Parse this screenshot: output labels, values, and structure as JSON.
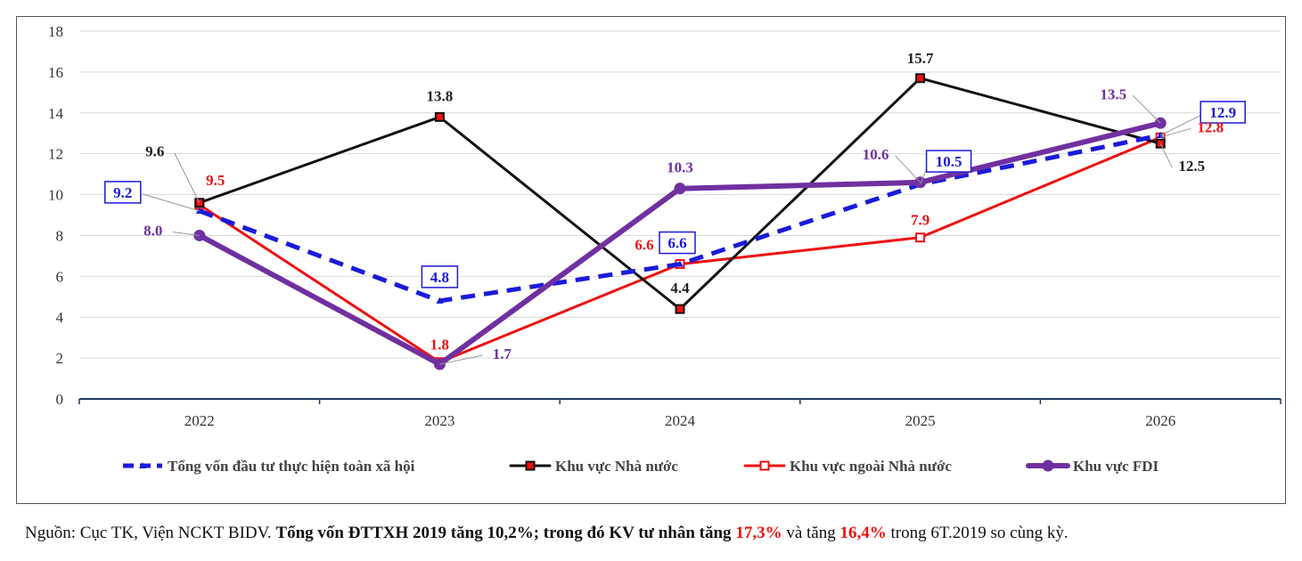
{
  "chart_data": {
    "type": "line",
    "title": "",
    "xlabel": "",
    "ylabel": "",
    "categories": [
      "2022",
      "2023",
      "2024",
      "2025",
      "2026"
    ],
    "ylim": [
      0,
      18
    ],
    "yticks": [
      "0",
      "2",
      "4",
      "6",
      "8",
      "10",
      "12",
      "14",
      "16",
      "18"
    ],
    "grid": "horizontal",
    "legend_position": "bottom",
    "series": [
      {
        "name": "Tổng vốn đầu tư thực hiện toàn xã hội",
        "values": [
          9.2,
          4.8,
          6.6,
          10.5,
          12.9
        ],
        "labels": [
          "9.2",
          "4.8",
          "6.6",
          "10.5",
          "12.9"
        ],
        "color": "#1a1adb",
        "style": "dashed",
        "marker": "triangle",
        "label_boxed": true
      },
      {
        "name": "Khu vực Nhà nước",
        "values": [
          9.6,
          13.8,
          4.4,
          15.7,
          12.5
        ],
        "labels": [
          "9.6",
          "13.8",
          "4.4",
          "15.7",
          "12.5"
        ],
        "color": "#111111",
        "style": "solid",
        "marker": "square",
        "marker_fill": "#ee1111"
      },
      {
        "name": "Khu vực ngoài Nhà nước",
        "values": [
          9.5,
          1.8,
          6.6,
          7.9,
          12.8
        ],
        "labels": [
          "9.5",
          "1.8",
          "6.6",
          "7.9",
          "12.8"
        ],
        "color": "#ee1111",
        "style": "solid",
        "marker": "square",
        "marker_fill": "#ffffff"
      },
      {
        "name": "Khu vực FDI",
        "values": [
          8.0,
          1.7,
          10.3,
          10.6,
          13.5
        ],
        "labels": [
          "8.0",
          "1.7",
          "10.3",
          "10.6",
          "13.5"
        ],
        "color": "#7030a0",
        "style": "thick",
        "marker": "circle"
      }
    ]
  },
  "caption": {
    "part1": "Nguồn: Cục TK, Viện NCKT BIDV. ",
    "part2": "Tổng vốn ĐTTXH 2019 tăng 10,2%; trong đó KV tư nhân tăng ",
    "part3": "17,3%",
    "part4": " và tăng ",
    "part5": "16,4%",
    "part6": " trong 6T.2019 so cùng kỳ."
  }
}
